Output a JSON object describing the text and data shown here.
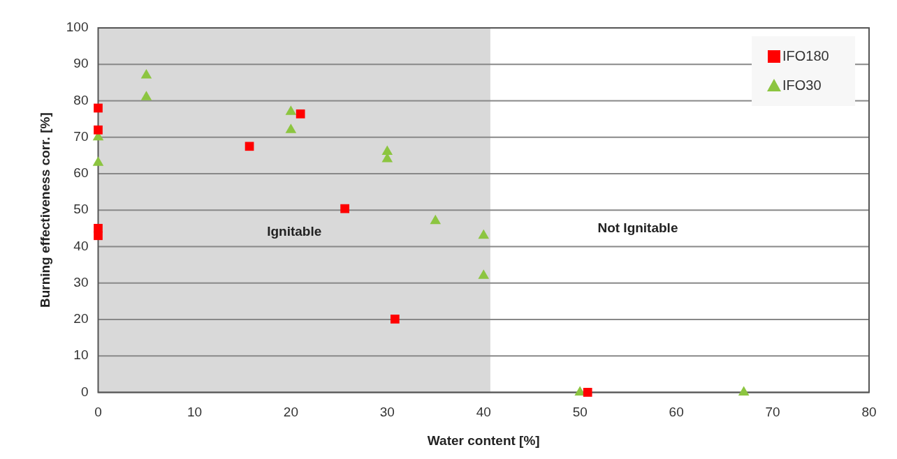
{
  "chart_data": {
    "type": "scatter",
    "xlabel": "Water content [%]",
    "ylabel": "Burning effectiveness corr. [%]",
    "xlim": [
      0,
      80
    ],
    "xticks": [
      0,
      10,
      20,
      30,
      40,
      50,
      60,
      70,
      80
    ],
    "ylim": [
      0,
      100
    ],
    "yticks": [
      0,
      10,
      20,
      30,
      40,
      50,
      60,
      70,
      80,
      90,
      100
    ],
    "grid": "y",
    "legend": "top right",
    "bands": [
      {
        "axis": "x",
        "from": 0,
        "to": 40.7,
        "label": "Ignitable",
        "color": "#d9d9d9"
      }
    ],
    "annotations": [
      "Not Ignitable"
    ],
    "series": [
      {
        "name": "IFO180",
        "color": "#ff0000",
        "marker": "square",
        "x": [
          0,
          0,
          0,
          0,
          15.7,
          21,
          25.6,
          30.8,
          50.8
        ],
        "values": [
          78,
          72,
          45,
          43,
          67.5,
          76.4,
          50.4,
          20.1,
          0
        ]
      },
      {
        "name": "IFO30",
        "color": "#8cc540",
        "marker": "triangle",
        "x": [
          0,
          0,
          5,
          5,
          20,
          20,
          30,
          30,
          35,
          40,
          40,
          50,
          67
        ],
        "values": [
          70,
          63,
          87,
          81,
          77,
          72,
          66,
          64,
          47,
          43,
          32,
          0,
          0
        ]
      }
    ]
  }
}
